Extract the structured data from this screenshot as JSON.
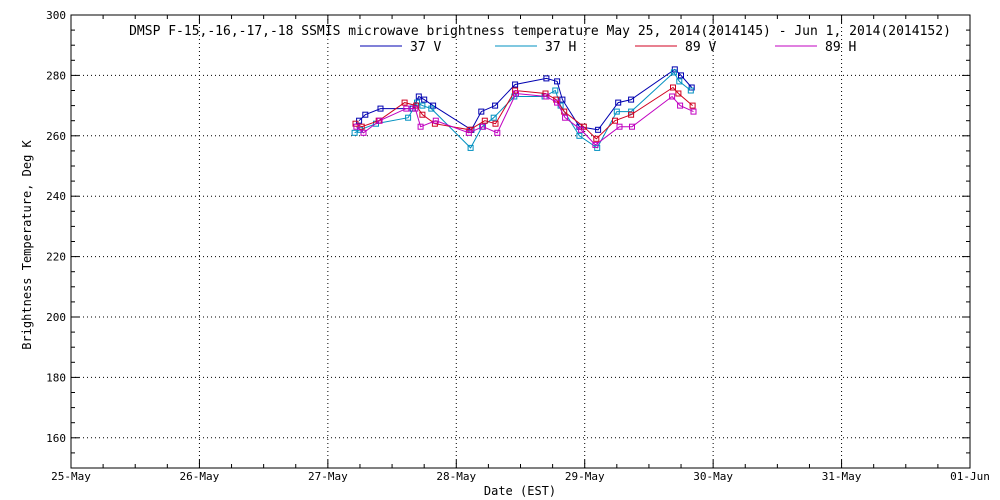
{
  "chart_data": {
    "type": "line",
    "title": "DMSP F-15,-16,-17,-18 SSMIS microwave brightness temperature May 25, 2014(2014145) - Jun  1, 2014(2014152)",
    "xlabel": "Date (EST)",
    "ylabel": "Brightness Temperature, Deg K",
    "xlim": [
      "2014-05-25T00:00",
      "2014-06-01T00:00"
    ],
    "ylim": [
      150,
      300
    ],
    "x_ticks": [
      "25-May",
      "26-May",
      "27-May",
      "28-May",
      "29-May",
      "30-May",
      "31-May",
      "01-Jun"
    ],
    "y_ticks": [
      160,
      180,
      200,
      220,
      240,
      260,
      280,
      300
    ],
    "grid": true,
    "legend_position": "top",
    "series": [
      {
        "name": "37 V",
        "color": "#0000b0",
        "x": [
          "2014-05-27T05:50",
          "2014-05-27T07:00",
          "2014-05-27T09:50",
          "2014-05-27T15:50",
          "2014-05-27T17:00",
          "2014-05-27T18:00",
          "2014-05-27T19:40",
          "2014-05-28T02:50",
          "2014-05-28T04:40",
          "2014-05-28T07:15",
          "2014-05-28T11:00",
          "2014-05-28T16:50",
          "2014-05-28T18:50",
          "2014-05-28T19:50",
          "2014-05-28T23:00",
          "2014-05-29T02:30",
          "2014-05-29T06:15",
          "2014-05-29T08:40",
          "2014-05-29T16:50",
          "2014-05-29T18:00",
          "2014-05-29T20:00"
        ],
        "values": [
          265,
          267,
          269,
          269,
          273,
          272,
          270,
          262,
          268,
          270,
          277,
          279,
          278,
          272,
          263,
          262,
          271,
          272,
          282,
          280,
          276
        ]
      },
      {
        "name": "37 H",
        "color": "#0090c0",
        "x": [
          "2014-05-27T05:00",
          "2014-05-27T06:00",
          "2014-05-27T09:00",
          "2014-05-27T15:00",
          "2014-05-27T16:40",
          "2014-05-27T17:40",
          "2014-05-27T19:20",
          "2014-05-28T02:40",
          "2014-05-28T04:50",
          "2014-05-28T07:00",
          "2014-05-28T10:50",
          "2014-05-28T16:30",
          "2014-05-28T18:30",
          "2014-05-28T19:30",
          "2014-05-28T23:00",
          "2014-05-29T02:20",
          "2014-05-29T06:00",
          "2014-05-29T08:40",
          "2014-05-29T16:40",
          "2014-05-29T17:40",
          "2014-05-29T19:50"
        ],
        "values": [
          261,
          262,
          264,
          266,
          271,
          270,
          269,
          256,
          263,
          266,
          273,
          273,
          275,
          270,
          260,
          256,
          268,
          268,
          281,
          278,
          275
        ]
      },
      {
        "name": "89 V",
        "color": "#d00020",
        "x": [
          "2014-05-27T05:10",
          "2014-05-27T06:20",
          "2014-05-27T09:30",
          "2014-05-27T14:20",
          "2014-05-27T16:30",
          "2014-05-27T17:40",
          "2014-05-27T20:00",
          "2014-05-28T02:30",
          "2014-05-28T05:20",
          "2014-05-28T07:20",
          "2014-05-28T11:00",
          "2014-05-28T16:40",
          "2014-05-28T18:40",
          "2014-05-28T20:10",
          "2014-05-28T23:50",
          "2014-05-29T02:10",
          "2014-05-29T05:40",
          "2014-05-29T08:40",
          "2014-05-29T16:30",
          "2014-05-29T17:30",
          "2014-05-29T20:10"
        ],
        "values": [
          264,
          263,
          265,
          271,
          270,
          267,
          264,
          262,
          265,
          264,
          275,
          274,
          272,
          268,
          263,
          259,
          265,
          267,
          276,
          274,
          270
        ]
      },
      {
        "name": "89 H",
        "color": "#c000c0",
        "x": [
          "2014-05-27T05:20",
          "2014-05-27T06:40",
          "2014-05-27T09:40",
          "2014-05-27T14:40",
          "2014-05-27T16:20",
          "2014-05-27T17:20",
          "2014-05-27T20:10",
          "2014-05-28T02:20",
          "2014-05-28T05:00",
          "2014-05-28T07:40",
          "2014-05-28T11:10",
          "2014-05-28T16:50",
          "2014-05-28T18:50",
          "2014-05-28T20:20",
          "2014-05-28T23:20",
          "2014-05-29T02:00",
          "2014-05-29T06:30",
          "2014-05-29T08:50",
          "2014-05-29T16:20",
          "2014-05-29T17:50",
          "2014-05-29T20:20"
        ],
        "values": [
          263,
          261,
          265,
          269,
          269,
          263,
          265,
          261,
          263,
          261,
          274,
          273,
          271,
          266,
          262,
          257,
          263,
          263,
          273,
          270,
          268
        ]
      }
    ]
  }
}
